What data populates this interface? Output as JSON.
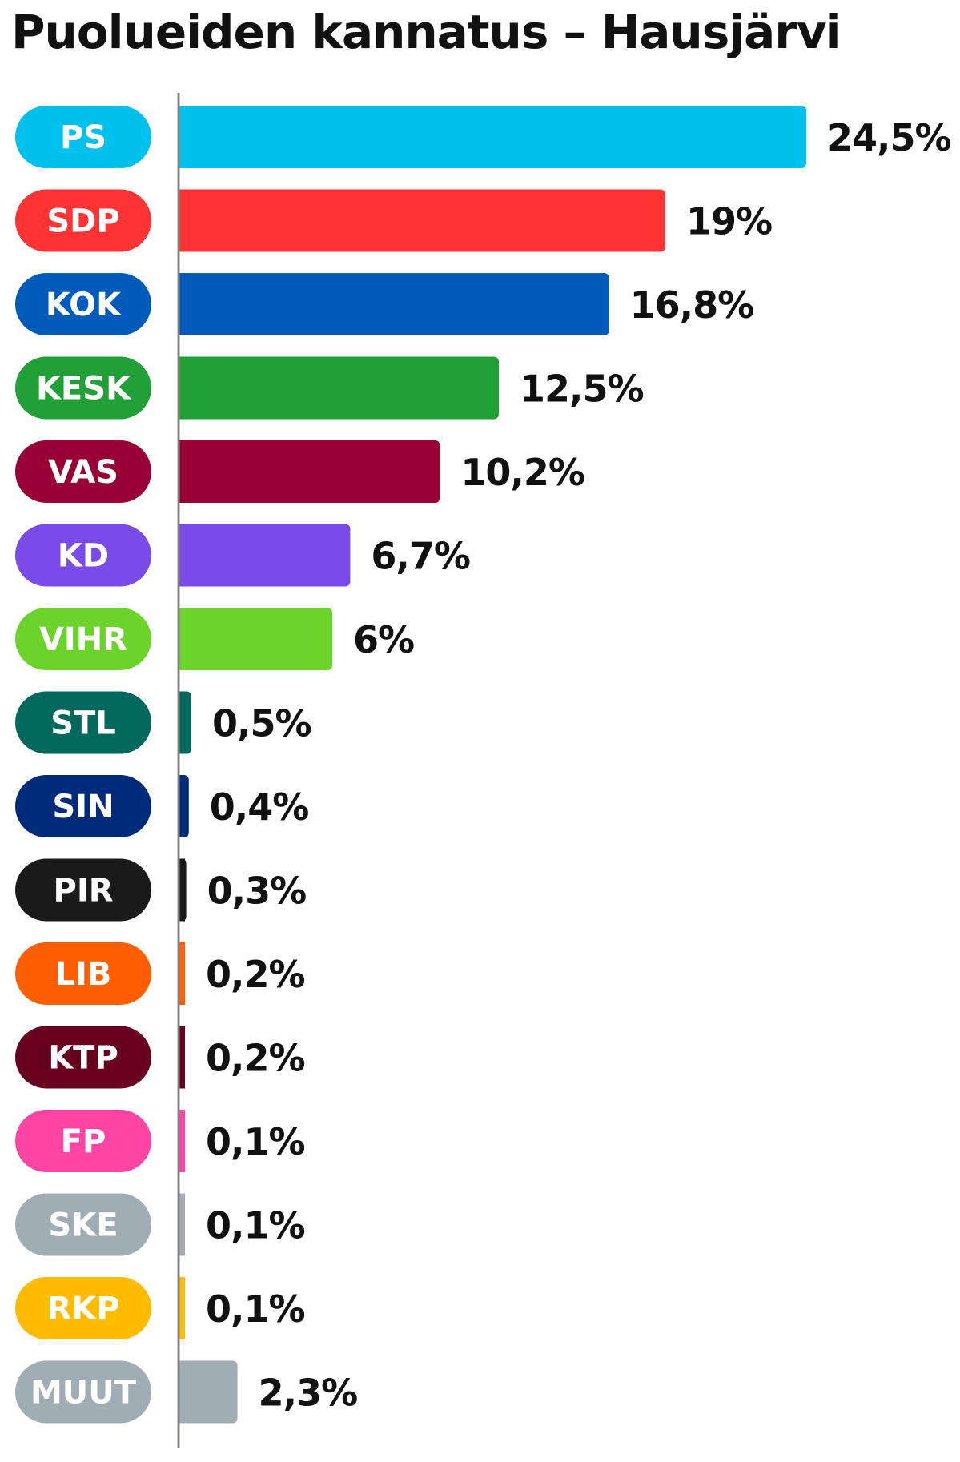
{
  "chart_data": {
    "type": "bar",
    "orientation": "horizontal",
    "title": "Puolueiden kannatus – Hausjärvi",
    "categories": [
      "PS",
      "SDP",
      "KOK",
      "KESK",
      "VAS",
      "KD",
      "VIHR",
      "STL",
      "SIN",
      "PIR",
      "LIB",
      "KTP",
      "FP",
      "SKE",
      "RKP",
      "MUUT"
    ],
    "values": [
      24.5,
      19,
      16.8,
      12.5,
      10.2,
      6.7,
      6,
      0.5,
      0.4,
      0.3,
      0.2,
      0.2,
      0.1,
      0.1,
      0.1,
      2.3
    ],
    "value_labels": [
      "24,5%",
      "19%",
      "16,8%",
      "12,5%",
      "10,2%",
      "6,7%",
      "6%",
      "0,5%",
      "0,4%",
      "0,3%",
      "0,2%",
      "0,2%",
      "0,1%",
      "0,1%",
      "0,1%",
      "2,3%"
    ],
    "colors": [
      "#00c0ee",
      "#ff3333",
      "#005bba",
      "#21a038",
      "#990036",
      "#7a4be8",
      "#6cd32b",
      "#00695c",
      "#002a7a",
      "#1a1a1a",
      "#ff5f00",
      "#670021",
      "#ff45a4",
      "#a1adb5",
      "#ffbb00",
      "#a1adb5"
    ],
    "axis_color": "#888888",
    "xlim": [
      0,
      24.5
    ],
    "xlabel": "",
    "ylabel": "",
    "grid": false,
    "legend": "none"
  }
}
